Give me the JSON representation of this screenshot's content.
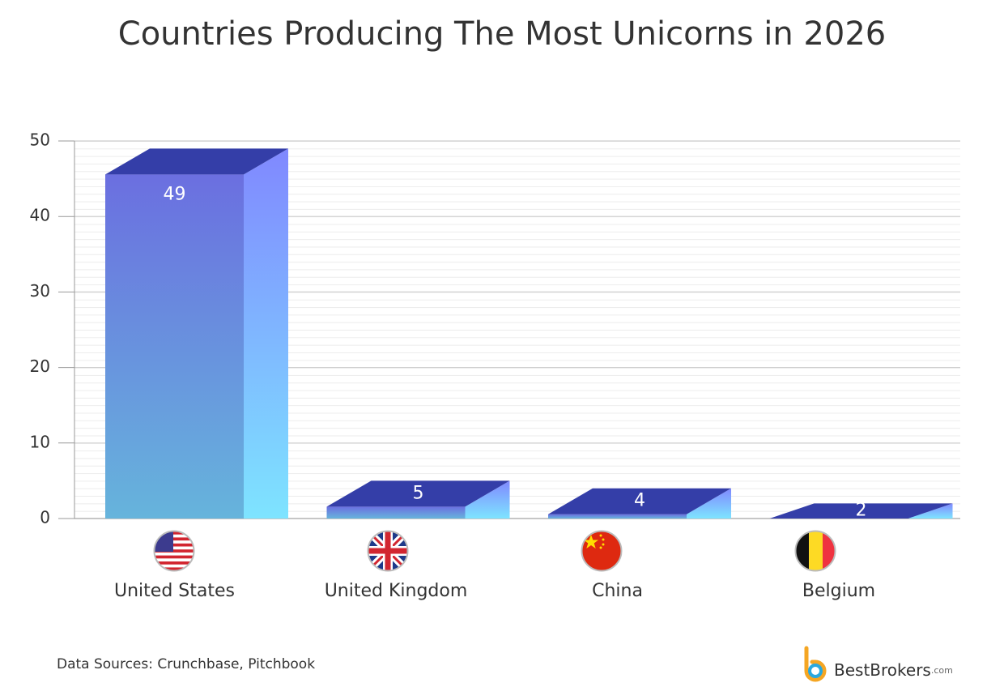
{
  "chart_data": {
    "type": "bar3d",
    "title": "Countries Producing The Most Unicorns in 2026",
    "categories": [
      "United States",
      "United Kingdom",
      "China",
      "Belgium"
    ],
    "values": [
      49,
      5,
      4,
      2
    ],
    "ylim": [
      0,
      50
    ],
    "yticks": [
      0,
      10,
      20,
      30,
      40,
      50
    ],
    "grid": true,
    "colors": {
      "front_top": "#6b6fe0",
      "front_bottom": "#66b4dc",
      "side_top": "#8088ff",
      "side_bottom": "#7ee4ff",
      "top": "#343ea8"
    },
    "source": "Data Sources: Crunchbase, Pitchbook",
    "brand": "BestBrokers",
    "brand_suffix": ".com"
  }
}
